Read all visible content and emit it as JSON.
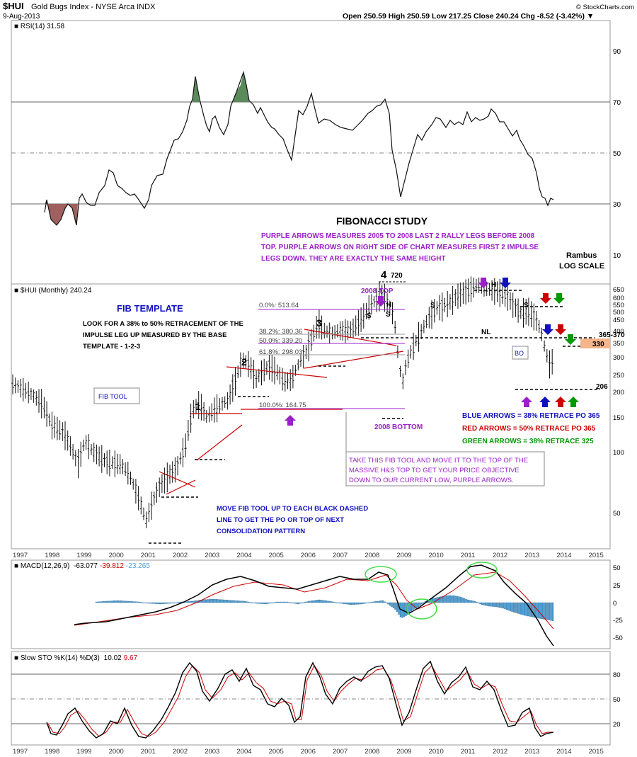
{
  "header": {
    "symbol": "$HUI",
    "name": "Gold Bugs Index - NYSE Arca INDX",
    "date": "9-Aug-2013",
    "quote": "Open 250.59  High 250.59  Low 217.25  Close 240.24  Chg -8.52 (-3.42%) ▼",
    "credit": "© StockCharts.com"
  },
  "x_years": [
    "1997",
    "1998",
    "1999",
    "2000",
    "2001",
    "2002",
    "2003",
    "2004",
    "2005",
    "2006",
    "2007",
    "2008",
    "2009",
    "2010",
    "2011",
    "2012",
    "2013",
    "2014",
    "2015"
  ],
  "rsi_panel": {
    "label": "■ RSI(14) 31.58",
    "ticks": [
      "90",
      "70",
      "50",
      "30",
      "10"
    ]
  },
  "price_panel": {
    "label": "■ $HUI (Monthly) 240.24",
    "ticks": [
      "650",
      "600",
      "550",
      "500",
      "450",
      "400",
      "350",
      "300",
      "250",
      "200",
      "150",
      "100",
      "50"
    ],
    "annotations": {
      "fib_study": "FIBONACCI STUDY",
      "purple_note": [
        "PURPLE ARROWS MEASURES 2005 TO 2008 LAST 2 RALLY LEGS BEFORE 2008",
        "TOP. PURPLE ARROWS ON RIGHT SIDE OF CHART MEASURES FIRST 2 IMPULSE",
        "LEGS DOWN. THEY ARE EXACTLY THE SAME HEIGHT"
      ],
      "rambus": "Rambus",
      "log_scale": "LOG SCALE",
      "fib_template": "FIB TEMPLATE",
      "template_note": [
        "LOOK FOR A 38% to 50% RETRACEMENT OF THE",
        "IMPULSE LEG UP MEASURED BY THE BASE",
        "TEMPLATE - 1-2-3"
      ],
      "fib_tool": "FIB TOOL",
      "move_note": [
        "MOVE FIB TOOL UP TO EACH BLACK DASHED",
        "LINE TO GET THE PO OR TOP OF NEXT",
        "CONSOLIDATION PATTERN"
      ],
      "take_note": [
        "TAKE THIS FIB TOOL AND MOVE IT TO THE TOP OF THE",
        "MASSIVE H&S TOP TO GET YOUR PRICE OBJECTIVE",
        "DOWN TO OUR CURRENT LOW, PURPLE ARROWS."
      ],
      "top_2008": "2008 TOP",
      "bottom_2008": "2008 BOTTOM",
      "label_720": "720",
      "label_4": "4",
      "label_1": "1",
      "label_2": "2",
      "label_3": "3",
      "fib_0": "0.0%: 513.64",
      "fib_382": "38.2%: 380.36",
      "fib_50": "50.0%: 339.20",
      "fib_618": "61.8%: 298.03",
      "fib_100": "100.0%: 164.75",
      "nl": "NL",
      "bo": "BO",
      "h": "H",
      "s": "S",
      "level_365": "365-370",
      "level_330": "330",
      "level_206": "206",
      "blue_legend": "BLUE ARROWS = 38% RETRACE PO 365",
      "red_legend": "RED ARROWS = 50% RETRACE PO 365",
      "green_legend": "GREEN ARROWS = 38% RETRACE 325"
    }
  },
  "macd_panel": {
    "label_prefix": "■ MACD(12,26,9)",
    "v1": "-63.077",
    "v2": "-39.812",
    "v3": "-23.265",
    "ticks": [
      "50",
      "25",
      "0",
      "-25",
      "-50"
    ]
  },
  "sto_panel": {
    "label_prefix": "■ Slow STO %K(14) %D(3)",
    "k": "10.02",
    "d": "9.67",
    "ticks": [
      "80",
      "50",
      "20"
    ]
  },
  "colors": {
    "purple": "#9a1fc8",
    "blue": "#1010c0",
    "red": "#cc0000",
    "green": "#009900",
    "macd_hist": "#4f9fd6",
    "rsi_fill": "#5a8a5a",
    "rsi_fill_low": "#a06060",
    "orange_box": "#f5b48a"
  },
  "chart_data": {
    "type": "line",
    "title": "$HUI Gold Bugs Index - NYSE Arca INDX",
    "x": [
      "1997",
      "1998",
      "1999",
      "2000",
      "2001",
      "2002",
      "2003",
      "2004",
      "2005",
      "2006",
      "2007",
      "2008",
      "2009",
      "2010",
      "2011",
      "2012",
      "2013"
    ],
    "series": [
      {
        "name": "$HUI (Monthly)",
        "values": [
          185,
          120,
          75,
          60,
          40,
          65,
          150,
          235,
          210,
          320,
          360,
          490,
          190,
          430,
          560,
          480,
          240
        ]
      },
      {
        "name": "RSI(14)",
        "values": [
          30,
          38,
          36,
          33,
          42,
          56,
          72,
          62,
          58,
          65,
          64,
          74,
          36,
          62,
          70,
          55,
          31
        ]
      }
    ],
    "ylim": [
      35,
      650
    ],
    "log_scale": true
  }
}
